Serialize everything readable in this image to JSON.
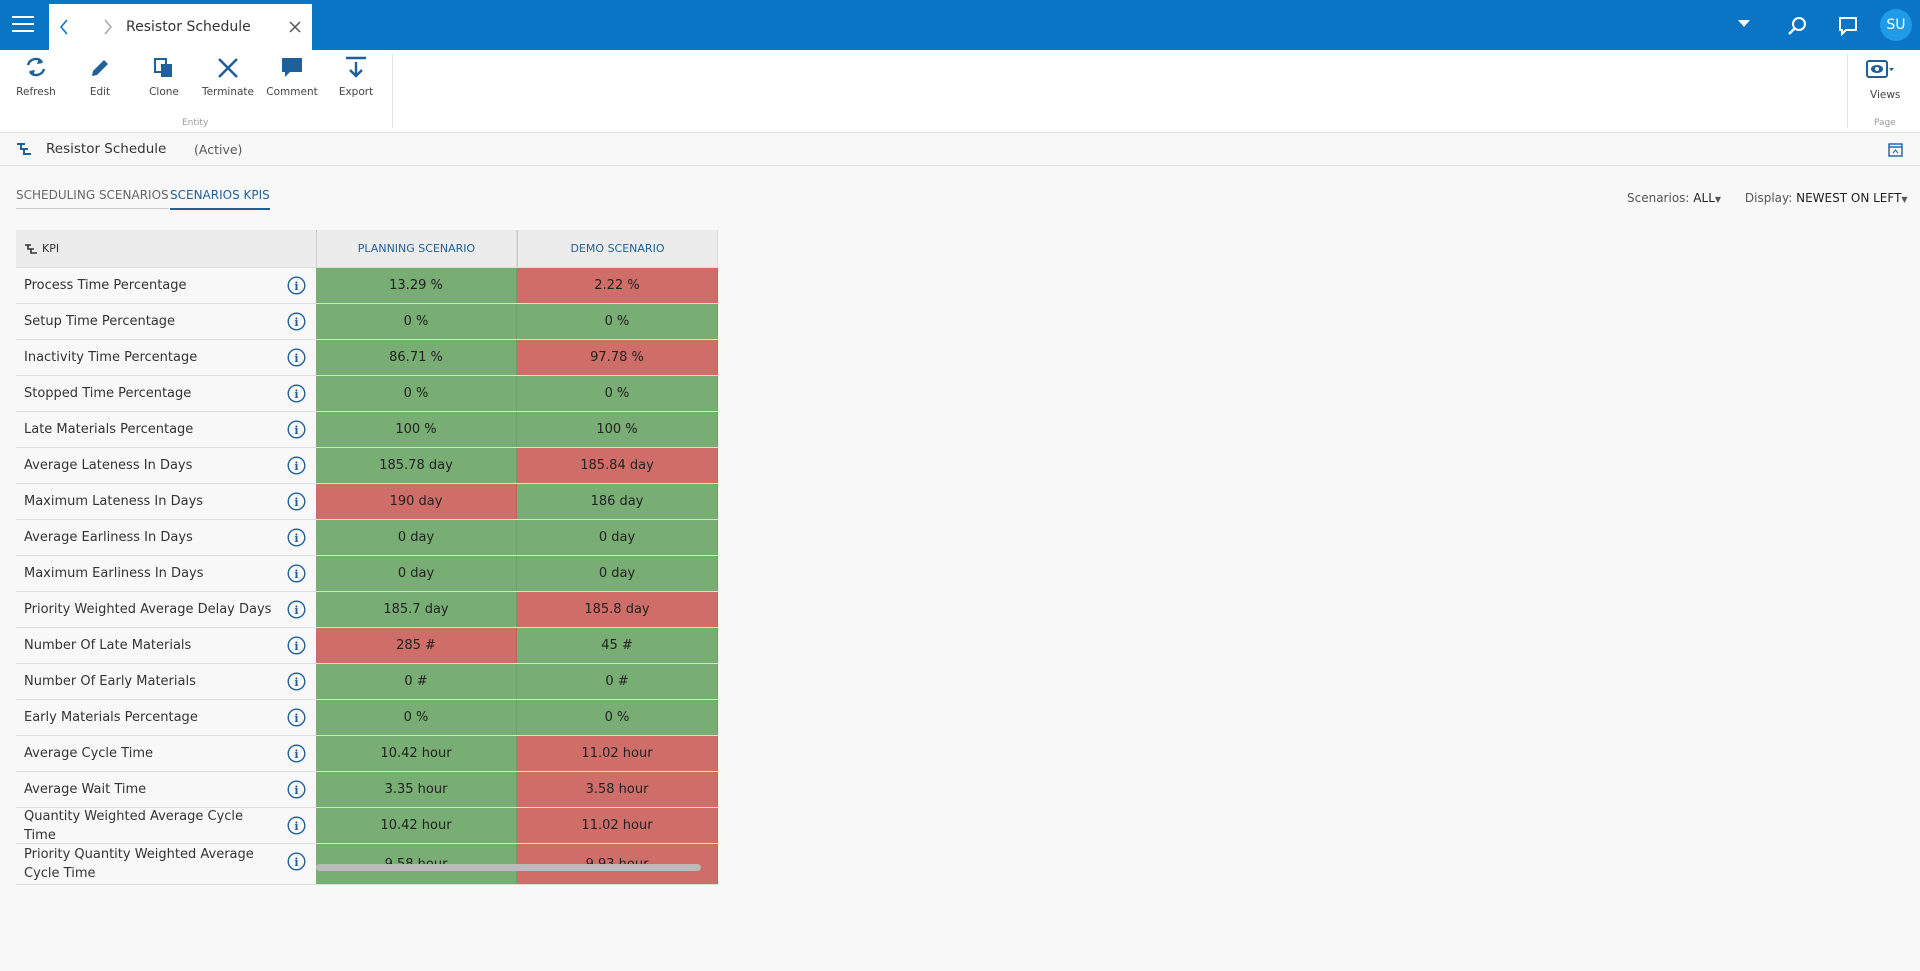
{
  "header": {
    "title": "Resistor Schedule",
    "avatar": "SU"
  },
  "ribbon": {
    "buttons": [
      "Refresh",
      "Edit",
      "Clone",
      "Terminate",
      "Comment",
      "Export"
    ],
    "group": "Entity",
    "views": "Views",
    "page": "Page"
  },
  "breadcrumb": {
    "title": "Resistor Schedule",
    "state": "(Active)"
  },
  "tabs": [
    "SCHEDULING SCENARIOS",
    "SCENARIOS KPIS"
  ],
  "filters": {
    "scenarios_label": "Scenarios:",
    "scenarios_value": "ALL",
    "display_label": "Display:",
    "display_value": "NEWEST ON LEFT"
  },
  "table": {
    "columns": [
      "KPI",
      "PLANNING SCENARIO",
      "DEMO SCENARIO"
    ],
    "rows": [
      [
        "Process Time Percentage",
        {
          "text": "13.29 %",
          "color": "#78ad73"
        },
        {
          "text": "2.22 %",
          "color": "#cf6e68"
        }
      ],
      [
        "Setup Time Percentage",
        {
          "text": "0 %",
          "color": "#78ad73"
        },
        {
          "text": "0 %",
          "color": "#78ad73"
        }
      ],
      [
        "Inactivity Time Percentage",
        {
          "text": "86.71 %",
          "color": "#78ad73"
        },
        {
          "text": "97.78 %",
          "color": "#cf6e68"
        }
      ],
      [
        "Stopped Time Percentage",
        {
          "text": "0 %",
          "color": "#78ad73"
        },
        {
          "text": "0 %",
          "color": "#78ad73"
        }
      ],
      [
        "Late Materials Percentage",
        {
          "text": "100 %",
          "color": "#78ad73"
        },
        {
          "text": "100 %",
          "color": "#78ad73"
        }
      ],
      [
        "Average Lateness In Days",
        {
          "text": "185.78 day",
          "color": "#78ad73"
        },
        {
          "text": "185.84 day",
          "color": "#cf6e68"
        }
      ],
      [
        "Maximum Lateness In Days",
        {
          "text": "190 day",
          "color": "#cf6e68"
        },
        {
          "text": "186 day",
          "color": "#78ad73"
        }
      ],
      [
        "Average Earliness In Days",
        {
          "text": "0 day",
          "color": "#78ad73"
        },
        {
          "text": "0 day",
          "color": "#78ad73"
        }
      ],
      [
        "Maximum Earliness In Days",
        {
          "text": "0 day",
          "color": "#78ad73"
        },
        {
          "text": "0 day",
          "color": "#78ad73"
        }
      ],
      [
        "Priority Weighted Average Delay Days",
        {
          "text": "185.7 day",
          "color": "#78ad73"
        },
        {
          "text": "185.8 day",
          "color": "#cf6e68"
        }
      ],
      [
        "Number Of Late Materials",
        {
          "text": "285 #",
          "color": "#cf6e68"
        },
        {
          "text": "45 #",
          "color": "#78ad73"
        }
      ],
      [
        "Number Of Early Materials",
        {
          "text": "0 #",
          "color": "#78ad73"
        },
        {
          "text": "0 #",
          "color": "#78ad73"
        }
      ],
      [
        "Early Materials Percentage",
        {
          "text": "0 %",
          "color": "#78ad73"
        },
        {
          "text": "0 %",
          "color": "#78ad73"
        }
      ],
      [
        "Average Cycle Time",
        {
          "text": "10.42 hour",
          "color": "#78ad73"
        },
        {
          "text": "11.02 hour",
          "color": "#cf6e68"
        }
      ],
      [
        "Average Wait Time",
        {
          "text": "3.35 hour",
          "color": "#78ad73"
        },
        {
          "text": "3.58 hour",
          "color": "#cf6e68"
        }
      ],
      [
        "Quantity Weighted Average Cycle Time",
        {
          "text": "10.42 hour",
          "color": "#78ad73"
        },
        {
          "text": "11.02 hour",
          "color": "#cf6e68"
        }
      ],
      [
        "Priority Quantity Weighted Average Cycle Time",
        {
          "text": "9.58 hour",
          "color": "#78ad73"
        },
        {
          "text": "9.93 hour",
          "color": "#cf6e68"
        }
      ]
    ]
  }
}
